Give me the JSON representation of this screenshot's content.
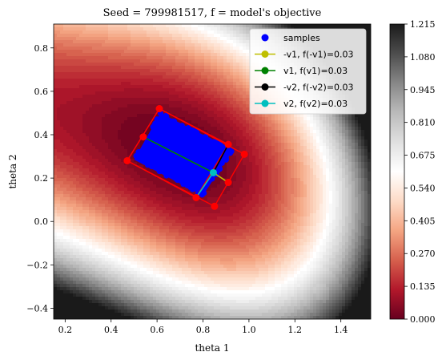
{
  "chart_data": {
    "type": "heatmap",
    "title": "Seed = 799981517, f = model's objective",
    "xlabel": "theta 1",
    "ylabel": "theta 2",
    "xlim": [
      0.15,
      1.53
    ],
    "ylim": [
      -0.45,
      0.91
    ],
    "x_ticks": [
      "0.2",
      "0.4",
      "0.6",
      "0.8",
      "1.0",
      "1.2",
      "1.4"
    ],
    "x_tick_values": [
      0.2,
      0.4,
      0.6,
      0.8,
      1.0,
      1.2,
      1.4
    ],
    "y_ticks": [
      "−0.4",
      "−0.2",
      "0.0",
      "0.2",
      "0.4",
      "0.6",
      "0.8"
    ],
    "y_tick_values": [
      -0.4,
      -0.2,
      0.0,
      0.2,
      0.4,
      0.6,
      0.8
    ],
    "colorbar": {
      "min": 0.0,
      "max": 1.215,
      "ticks": [
        "0.000",
        "0.135",
        "0.270",
        "0.405",
        "0.540",
        "0.675",
        "0.810",
        "0.945",
        "1.080",
        "1.215"
      ],
      "tick_values": [
        0.0,
        0.135,
        0.27,
        0.405,
        0.54,
        0.675,
        0.81,
        0.945,
        1.08,
        1.215
      ],
      "colormap": "RdGy"
    },
    "objective_minimum": [
      0.7,
      0.32
    ],
    "center": [
      0.845,
      0.225
    ],
    "legend_position": "top-right",
    "legend": [
      {
        "label": "samples",
        "color": "#0000ff",
        "kind": "marker"
      },
      {
        "label": "-v1, f(-v1)=0.03",
        "color": "#bfbf00",
        "kind": "line"
      },
      {
        "label": "v1, f(v1)=0.03",
        "color": "#008000",
        "kind": "line"
      },
      {
        "label": "-v2, f(-v2)=0.03",
        "color": "#000000",
        "kind": "line"
      },
      {
        "label": "v2, f(v2)=0.03",
        "color": "#00bfbf",
        "kind": "line"
      }
    ],
    "series": {
      "neg_v1": {
        "from": [
          0.845,
          0.225
        ],
        "to": [
          0.91,
          0.18
        ],
        "color": "#bfbf00"
      },
      "v1": {
        "from": [
          0.845,
          0.225
        ],
        "to": [
          0.54,
          0.39
        ],
        "color": "#008000"
      },
      "neg_v2": {
        "from": [
          0.845,
          0.225
        ],
        "to": [
          0.91,
          0.355
        ],
        "color": "#000000"
      },
      "v2": {
        "from": [
          0.845,
          0.225
        ],
        "to": [
          0.77,
          0.11
        ],
        "color": "#00bfbf"
      }
    },
    "outer_box": [
      [
        0.61,
        0.52
      ],
      [
        0.98,
        0.31
      ],
      [
        0.85,
        0.07
      ],
      [
        0.47,
        0.28
      ]
    ],
    "inner_box": [
      [
        0.61,
        0.52
      ],
      [
        0.91,
        0.355
      ],
      [
        0.77,
        0.11
      ],
      [
        0.47,
        0.28
      ]
    ],
    "red_points": [
      [
        0.61,
        0.52
      ],
      [
        0.98,
        0.31
      ],
      [
        0.85,
        0.07
      ],
      [
        0.47,
        0.28
      ],
      [
        0.54,
        0.39
      ],
      [
        0.91,
        0.355
      ],
      [
        0.91,
        0.18
      ],
      [
        0.77,
        0.11
      ]
    ],
    "samples_region": [
      [
        0.615,
        0.5
      ],
      [
        0.93,
        0.33
      ],
      [
        0.8,
        0.12
      ],
      [
        0.5,
        0.285
      ]
    ],
    "sample_color": "#0000ff",
    "box_color": "#ff0000"
  }
}
